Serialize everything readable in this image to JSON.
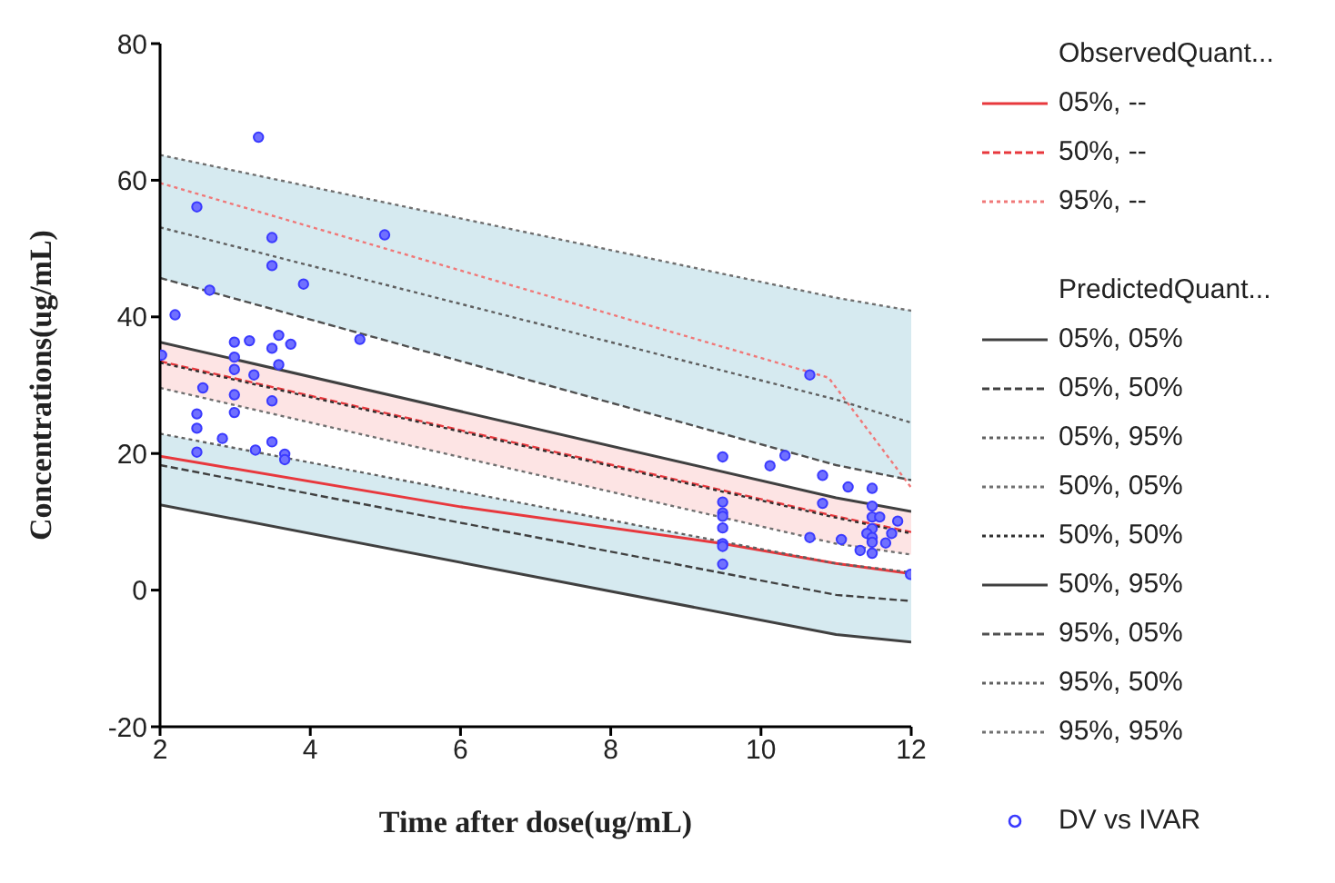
{
  "chart_data": {
    "type": "line",
    "xlabel": "Time after dose(ug/mL)",
    "ylabel": "Concentrations(ug/mL)",
    "xlim": [
      2,
      12
    ],
    "xticks": [
      2,
      4,
      6,
      8,
      10,
      12
    ],
    "ylim": [
      -20,
      80
    ],
    "yticks": [
      -20,
      0,
      20,
      40,
      60,
      80
    ],
    "grid": false,
    "legend": "right",
    "legend_title": "ObservedQuant...",
    "annotations": [
      "PredictedQuant..."
    ],
    "marker": "none",
    "series": [
      {
        "name": "05%, --",
        "color": "#e8383d",
        "line_style": "solid",
        "x": [
          2,
          6,
          9.5,
          11,
          12
        ],
        "values": [
          19.6,
          12.2,
          6.8,
          3.9,
          2.4
        ]
      },
      {
        "name": "50%, --",
        "color": "#e8383d",
        "line_style": "dashed",
        "x": [
          2,
          11,
          12
        ],
        "values": [
          33.5,
          10.8,
          8.5
        ]
      },
      {
        "name": "95%, --",
        "color": "#f07878",
        "line_style": "dotted",
        "x": [
          2,
          10.9,
          12
        ],
        "values": [
          59.6,
          31.1,
          15.0
        ]
      },
      {
        "name": "05%, 05%",
        "color": "#404040",
        "line_style": "solid",
        "x": [
          2,
          11,
          12
        ],
        "values": [
          12.5,
          -6.5,
          -7.6
        ]
      },
      {
        "name": "05%, 50%",
        "color": "#404040",
        "line_style": "dashed",
        "x": [
          2,
          11,
          12
        ],
        "values": [
          18.3,
          -0.7,
          -1.6
        ],
        "lower": [
          12.5,
          -6.5,
          -7.6
        ],
        "upper": [
          22.9,
          3.9,
          2.6
        ]
      },
      {
        "name": "05%, 95%",
        "color": "#606060",
        "line_style": "dotted",
        "x": [
          2,
          11,
          12
        ],
        "values": [
          22.9,
          3.9,
          2.6
        ]
      },
      {
        "name": "50%, 05%",
        "color": "#707070",
        "line_style": "dotted",
        "x": [
          2,
          11,
          12
        ],
        "values": [
          29.6,
          6.8,
          5.2
        ]
      },
      {
        "name": "50%, 50%",
        "color": "#303030",
        "line_style": "dotted",
        "x": [
          2,
          11,
          12
        ],
        "values": [
          33.3,
          10.6,
          8.3
        ],
        "lower": [
          29.6,
          6.8,
          5.2
        ],
        "upper": [
          36.3,
          13.5,
          11.5
        ]
      },
      {
        "name": "50%, 95%",
        "color": "#404040",
        "line_style": "solid",
        "x": [
          2,
          11,
          12
        ],
        "values": [
          36.3,
          13.5,
          11.5
        ]
      },
      {
        "name": "95%, 05%",
        "color": "#505050",
        "line_style": "dashed",
        "x": [
          2,
          11,
          12
        ],
        "values": [
          45.7,
          18.3,
          16.1
        ]
      },
      {
        "name": "95%, 50%",
        "color": "#606060",
        "line_style": "dotted",
        "x": [
          2,
          11,
          12
        ],
        "values": [
          53.1,
          27.9,
          24.5
        ],
        "lower": [
          45.7,
          18.3,
          16.1
        ],
        "upper": [
          63.7,
          42.8,
          40.9
        ]
      },
      {
        "name": "95%, 95%",
        "color": "#707070",
        "line_style": "dotted",
        "x": [
          2,
          11,
          12
        ],
        "values": [
          63.7,
          42.8,
          40.9
        ]
      },
      {
        "name": "DV vs IVAR",
        "type": "scatter",
        "marker": "circle",
        "color": "#3a3aff",
        "x": [
          3.31,
          2.49,
          3.49,
          3.49,
          4.99,
          3.91,
          2.66,
          2.2,
          4.66,
          2.99,
          3.19,
          3.58,
          3.49,
          3.74,
          2.99,
          2.02,
          2.99,
          3.58,
          3.25,
          2.57,
          2.99,
          3.49,
          2.99,
          2.49,
          2.49,
          2.83,
          3.49,
          3.27,
          2.49,
          3.66,
          3.66,
          10.65,
          9.49,
          10.12,
          10.32,
          10.82,
          11.16,
          11.48,
          10.82,
          9.49,
          9.49,
          9.49,
          9.49,
          9.49,
          9.49,
          9.49,
          10.65,
          11.07,
          11.32,
          11.48,
          11.48,
          11.58,
          11.48,
          11.41,
          11.74,
          11.82,
          11.48,
          11.48,
          11.66,
          11.48,
          11.99
        ],
        "values": [
          66.3,
          56.1,
          51.6,
          47.5,
          52.0,
          44.8,
          43.9,
          40.3,
          36.7,
          36.3,
          36.5,
          37.3,
          35.4,
          36.0,
          34.1,
          34.4,
          32.3,
          33.0,
          31.5,
          29.6,
          28.6,
          27.7,
          26.0,
          25.8,
          23.7,
          22.2,
          21.7,
          20.5,
          20.2,
          19.9,
          19.1,
          31.5,
          19.5,
          18.2,
          19.7,
          16.8,
          15.1,
          14.9,
          12.7,
          12.9,
          11.3,
          10.8,
          9.1,
          6.8,
          6.4,
          3.8,
          7.7,
          7.4,
          5.8,
          12.3,
          10.7,
          10.7,
          9.0,
          8.3,
          8.3,
          10.1,
          7.7,
          7.0,
          6.9,
          5.4,
          2.3
        ]
      }
    ]
  }
}
